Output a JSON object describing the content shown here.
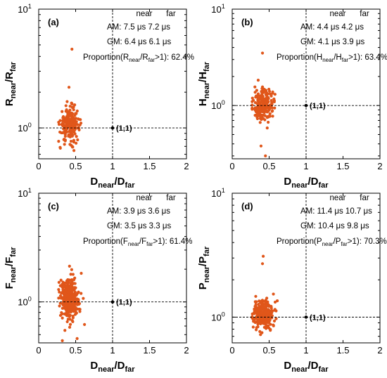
{
  "chart_data": [
    {
      "type": "scatter",
      "panel": "(a)",
      "xlabel": {
        "main": "D",
        "sub1": "near",
        "sep": "/D",
        "sub2": "far"
      },
      "ylabel": {
        "main": "R",
        "sub1": "near",
        "sep": "/R",
        "sub2": "far"
      },
      "xlim": [
        0,
        2
      ],
      "ylim": [
        0.55,
        10
      ],
      "yscale": "log",
      "xticks": [
        "0",
        "0.5",
        "1",
        "1.5",
        "2"
      ],
      "yticks": [
        {
          "value": 1,
          "base": "10",
          "exp": "0"
        },
        {
          "value": 10,
          "base": "10",
          "exp": "1"
        }
      ],
      "reference_point": {
        "x": 1,
        "y": 1,
        "label": "(1,1)"
      },
      "stats": {
        "header": [
          "near",
          "far"
        ],
        "rows": [
          {
            "label": "AM:",
            "near": "7.5",
            "far": "7.2",
            "unit": "μs"
          },
          {
            "label": "GM:",
            "near": "6.4",
            "far": "6.1",
            "unit": "μs"
          }
        ],
        "proportion": {
          "prefix": "Proportion(",
          "var": "R",
          "sub1": "near",
          "sep": "/R",
          "sub2": "far",
          "suffix": ">1):",
          "value": "62.4%"
        }
      },
      "series": {
        "n": 230,
        "x_mean": 0.42,
        "x_sd": 0.065,
        "log10_y_mean": 0.03,
        "log10_y_sd": 0.07,
        "y_min": 0.62,
        "y_max": 2.5,
        "outliers": [
          {
            "x": 0.45,
            "y": 4.6
          },
          {
            "x": 0.41,
            "y": 2.2
          }
        ]
      }
    },
    {
      "type": "scatter",
      "panel": "(b)",
      "xlabel": {
        "main": "D",
        "sub1": "near",
        "sep": "/D",
        "sub2": "far"
      },
      "ylabel": {
        "main": "H",
        "sub1": "near",
        "sep": "/H",
        "sub2": "far"
      },
      "xlim": [
        0,
        2
      ],
      "ylim": [
        0.28,
        10
      ],
      "yscale": "log",
      "xticks": [
        "0",
        "0.5",
        "1",
        "1.5",
        "2"
      ],
      "yticks": [
        {
          "value": 1,
          "base": "10",
          "exp": "0"
        },
        {
          "value": 10,
          "base": "10",
          "exp": "1"
        }
      ],
      "reference_point": {
        "x": 1,
        "y": 1,
        "label": "(1,1)"
      },
      "stats": {
        "header": [
          "near",
          "far"
        ],
        "rows": [
          {
            "label": "AM:",
            "near": "4.4",
            "far": "4.2",
            "unit": "μs"
          },
          {
            "label": "GM:",
            "near": "4.1",
            "far": "3.9",
            "unit": "μs"
          }
        ],
        "proportion": {
          "prefix": "Proportion(",
          "var": "H",
          "sub1": "near",
          "sep": "/H",
          "sub2": "far",
          "suffix": ">1):",
          "value": "63.4%"
        }
      },
      "series": {
        "n": 240,
        "x_mean": 0.42,
        "x_sd": 0.065,
        "log10_y_mean": 0.01,
        "log10_y_sd": 0.08,
        "y_min": 0.45,
        "y_max": 2.6,
        "outliers": [
          {
            "x": 0.41,
            "y": 3.5
          },
          {
            "x": 0.45,
            "y": 0.3
          },
          {
            "x": 0.39,
            "y": 0.38
          }
        ]
      }
    },
    {
      "type": "scatter",
      "panel": "(c)",
      "xlabel": {
        "main": "D",
        "sub1": "near",
        "sep": "/D",
        "sub2": "far"
      },
      "ylabel": {
        "main": "F",
        "sub1": "near",
        "sep": "/F",
        "sub2": "far"
      },
      "xlim": [
        0,
        2
      ],
      "ylim": [
        0.42,
        10
      ],
      "yscale": "log",
      "xticks": [
        "0",
        "0.5",
        "1",
        "1.5",
        "2"
      ],
      "yticks": [
        {
          "value": 1,
          "base": "10",
          "exp": "0"
        },
        {
          "value": 10,
          "base": "10",
          "exp": "1"
        }
      ],
      "reference_point": {
        "x": 1,
        "y": 1,
        "label": "(1,1)"
      },
      "stats": {
        "header": [
          "near",
          "far"
        ],
        "rows": [
          {
            "label": "AM:",
            "near": "3.9",
            "far": "3.6",
            "unit": "μs"
          },
          {
            "label": "GM:",
            "near": "3.5",
            "far": "3.3",
            "unit": "μs"
          }
        ],
        "proportion": {
          "prefix": "Proportion(",
          "var": "F",
          "sub1": "near",
          "sep": "/F",
          "sub2": "far",
          "suffix": ">1):",
          "value": "61.4%"
        }
      },
      "series": {
        "n": 330,
        "x_mean": 0.42,
        "x_sd": 0.065,
        "log10_y_mean": 0.03,
        "log10_y_sd": 0.1,
        "y_min": 0.5,
        "y_max": 2.9,
        "outliers": [
          {
            "x": 0.32,
            "y": 0.44
          },
          {
            "x": 0.52,
            "y": 0.46
          }
        ]
      }
    },
    {
      "type": "scatter",
      "panel": "(d)",
      "xlabel": {
        "main": "D",
        "sub1": "near",
        "sep": "/D",
        "sub2": "far"
      },
      "ylabel": {
        "main": "P",
        "sub1": "near",
        "sep": "/P",
        "sub2": "far"
      },
      "xlim": [
        0,
        2
      ],
      "ylim": [
        0.62,
        10
      ],
      "yscale": "log",
      "xticks": [
        "0",
        "0.5",
        "1",
        "1.5",
        "2"
      ],
      "yticks": [
        {
          "value": 1,
          "base": "10",
          "exp": "0"
        },
        {
          "value": 10,
          "base": "10",
          "exp": "1"
        }
      ],
      "reference_point": {
        "x": 1,
        "y": 1,
        "label": "(1,1)"
      },
      "stats": {
        "header": [
          "near",
          "far"
        ],
        "rows": [
          {
            "label": "AM:",
            "near": "11.4",
            "far": "10.7",
            "unit": "μs"
          },
          {
            "label": "GM:",
            "near": "10.4",
            "far": "9.8",
            "unit": "μs"
          }
        ],
        "proportion": {
          "prefix": "Proportion(",
          "var": "P",
          "sub1": "near",
          "sep": "/P",
          "sub2": "far",
          "suffix": ">1):",
          "value": "70.3%"
        }
      },
      "series": {
        "n": 300,
        "x_mean": 0.42,
        "x_sd": 0.065,
        "log10_y_mean": 0.02,
        "log10_y_sd": 0.06,
        "y_min": 0.66,
        "y_max": 2.4,
        "outliers": [
          {
            "x": 0.42,
            "y": 3.1
          },
          {
            "x": 0.41,
            "y": 2.7
          }
        ]
      }
    }
  ]
}
